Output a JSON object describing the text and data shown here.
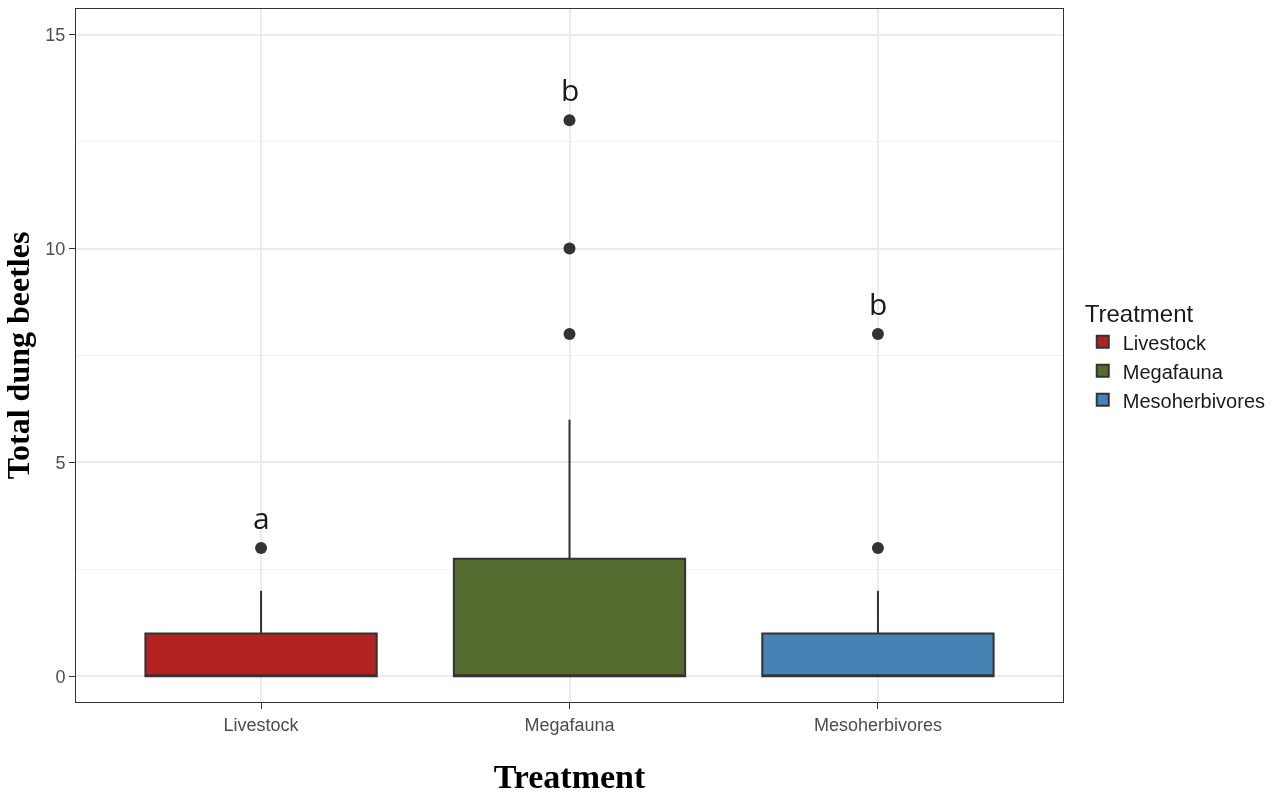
{
  "chart_data": {
    "type": "box",
    "xlabel": "Treatment",
    "ylabel": "Total dung beetles",
    "legend_title": "Treatment",
    "categories": [
      "Livestock",
      "Megafauna",
      "Mesoherbivores"
    ],
    "series": [
      {
        "name": "Livestock",
        "color": "#b22222",
        "boxes": [
          {
            "low": 0,
            "q1": 0,
            "median": 0,
            "q3": 1,
            "high": 2,
            "outliers": [
              3
            ]
          },
          null,
          null
        ]
      },
      {
        "name": "Megafauna",
        "color": "#556b2f",
        "boxes": [
          null,
          {
            "low": 0,
            "q1": 0,
            "median": 0,
            "q3": 2.75,
            "high": 6,
            "outliers": [
              8,
              10,
              13
            ]
          },
          null
        ]
      },
      {
        "name": "Mesoherbivores",
        "color": "#4682b4",
        "boxes": [
          null,
          null,
          {
            "low": 0,
            "q1": 0,
            "median": 0,
            "q3": 1,
            "high": 2,
            "outliers": [
              3,
              8
            ]
          }
        ]
      }
    ],
    "ylim": [
      -0.6,
      15.6
    ],
    "yticks": [
      0,
      5,
      10,
      15
    ],
    "annotations": [
      "a",
      "b",
      "b"
    ],
    "grid": true,
    "legend": "right"
  }
}
